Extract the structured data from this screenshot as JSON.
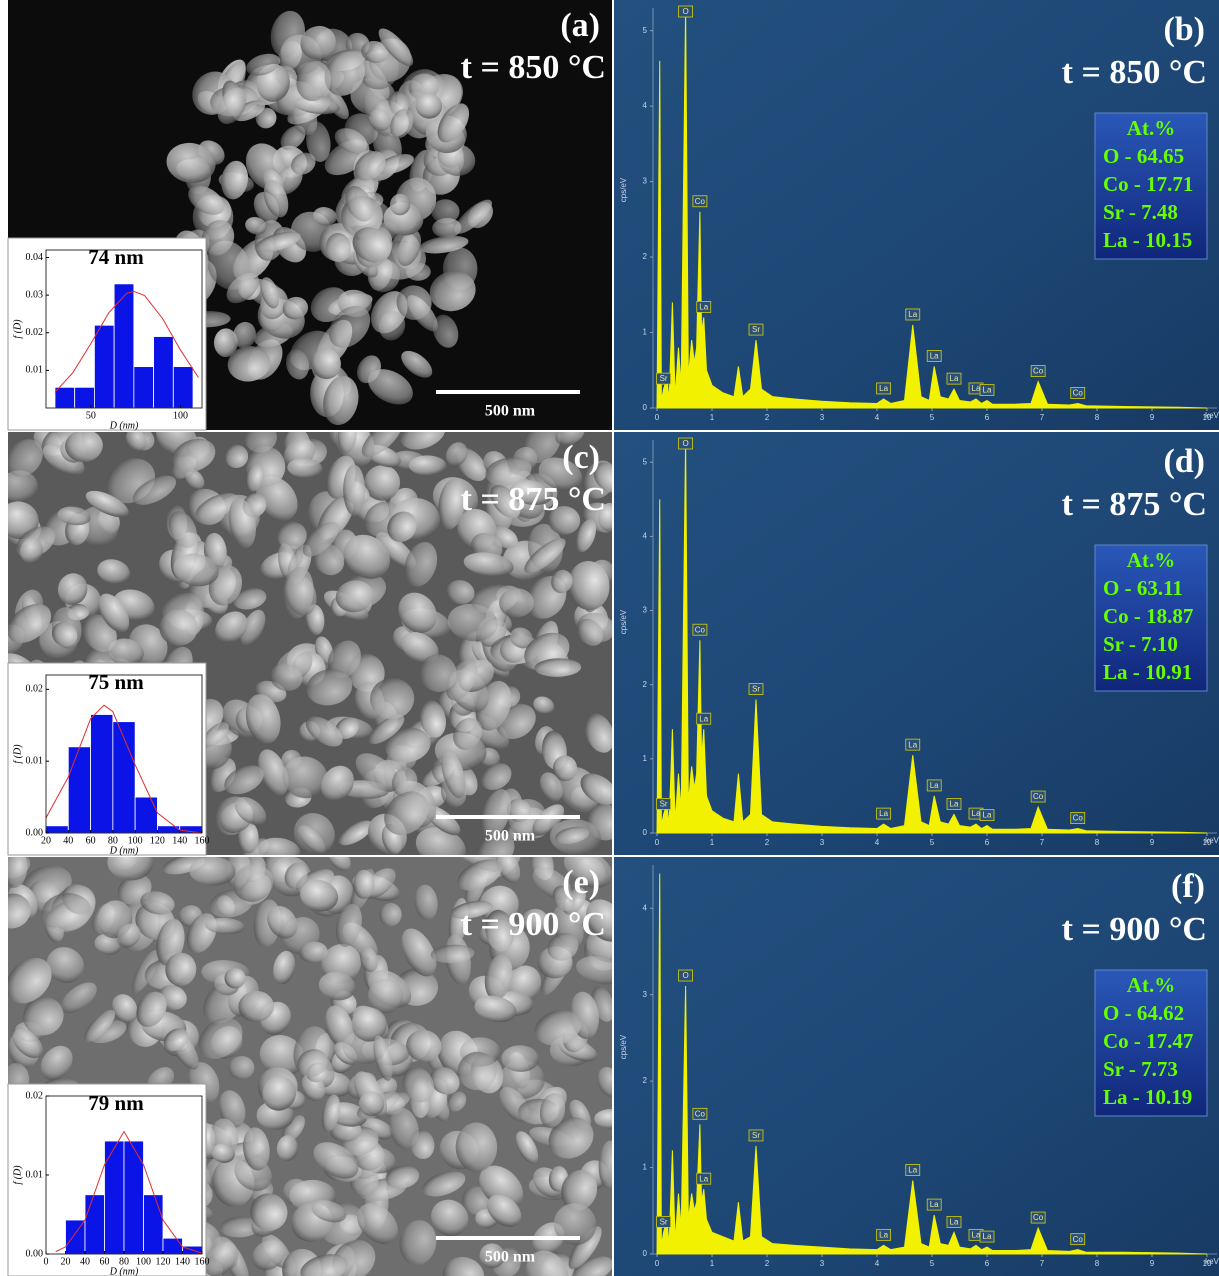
{
  "chart_data": [
    {
      "type": "histogram",
      "panel_label": "(a)",
      "temperature": "t = 850 °C",
      "scale_bar": "500 nm",
      "title": "74 nm",
      "x_label": "D (nm)",
      "y_label": "f (D)",
      "bins": [
        30,
        41,
        52,
        63,
        74,
        85,
        96,
        107
      ],
      "values": [
        0.0055,
        0.0055,
        0.022,
        0.033,
        0.011,
        0.019,
        0.011
      ],
      "color": "#0a14e6",
      "fit": {
        "x": [
          30,
          40,
          50,
          60,
          70,
          74,
          80,
          90,
          100,
          110
        ],
        "values": [
          0.0042,
          0.0094,
          0.0171,
          0.0253,
          0.0305,
          0.031,
          0.0299,
          0.0238,
          0.0154,
          0.0081
        ],
        "color": "#e03030"
      },
      "xlim": [
        25,
        112
      ],
      "xticks": [
        50,
        100
      ],
      "ylim": [
        0,
        0.042
      ],
      "yticks": [
        0.01,
        0.02,
        0.03,
        0.04
      ]
    },
    {
      "type": "spectrum",
      "panel_label": "(b)",
      "temperature": "t = 850 °C",
      "x_label": "keV",
      "y_label": "cps/eV",
      "x": [
        0,
        0.05,
        0.08,
        0.12,
        0.18,
        0.22,
        0.28,
        0.33,
        0.39,
        0.44,
        0.52,
        0.57,
        0.63,
        0.68,
        0.72,
        0.78,
        0.81,
        0.85,
        0.9,
        1.0,
        1.2,
        1.4,
        1.48,
        1.56,
        1.7,
        1.8,
        1.9,
        2.1,
        2.5,
        3.0,
        3.5,
        4.0,
        4.12,
        4.25,
        4.5,
        4.65,
        4.8,
        4.95,
        5.04,
        5.15,
        5.3,
        5.4,
        5.5,
        5.7,
        5.8,
        5.9,
        6.0,
        6.1,
        6.5,
        6.8,
        6.93,
        7.1,
        7.5,
        7.65,
        7.8,
        8.5,
        9.5,
        10
      ],
      "values": [
        0,
        4.6,
        0.1,
        0.25,
        0.4,
        0.1,
        1.4,
        0.15,
        0.8,
        0.3,
        5.3,
        0.4,
        0.9,
        0.6,
        0.8,
        2.6,
        1.0,
        1.2,
        0.5,
        0.3,
        0.2,
        0.15,
        0.55,
        0.15,
        0.25,
        0.9,
        0.25,
        0.15,
        0.12,
        0.09,
        0.07,
        0.06,
        0.12,
        0.06,
        0.1,
        1.1,
        0.15,
        0.1,
        0.55,
        0.15,
        0.12,
        0.25,
        0.1,
        0.08,
        0.12,
        0.06,
        0.1,
        0.05,
        0.05,
        0.06,
        0.35,
        0.05,
        0.04,
        0.06,
        0.03,
        0.02,
        0.01,
        0
      ],
      "color": "#f2f200",
      "xlim": [
        0,
        10
      ],
      "xticks": [
        0,
        1,
        2,
        3,
        4,
        5,
        6,
        7,
        8,
        9,
        10
      ],
      "ylim": [
        0,
        5.3
      ],
      "yticks": [
        0,
        1,
        2,
        3,
        4,
        5
      ],
      "peak_labels": [
        "Sr",
        "O",
        "Co",
        "La",
        "Sr",
        "La",
        "La",
        "La",
        "La",
        "La",
        "La",
        "Co",
        "Co"
      ],
      "peak_x": [
        0.12,
        0.52,
        0.78,
        0.85,
        1.8,
        4.12,
        4.65,
        5.04,
        5.4,
        5.8,
        6.0,
        6.93,
        7.65
      ],
      "composition_title": "At.%",
      "composition": [
        "O - 64.65",
        "Co - 17.71",
        "Sr - 7.48",
        "La - 10.15"
      ]
    },
    {
      "type": "histogram",
      "panel_label": "(c)",
      "temperature": "t = 875 °C",
      "scale_bar": "500 nm",
      "title": "75 nm",
      "x_label": "D (nm)",
      "y_label": "f (D)",
      "bins": [
        20,
        40,
        60,
        80,
        100,
        120,
        140,
        160
      ],
      "values": [
        0.001,
        0.012,
        0.0165,
        0.0155,
        0.005,
        0.001,
        0.001
      ],
      "color": "#0a14e6",
      "fit": {
        "x": [
          20,
          40,
          60,
          72,
          80,
          100,
          120,
          140,
          160
        ],
        "values": [
          0.0021,
          0.0078,
          0.0159,
          0.0178,
          0.0169,
          0.0095,
          0.0028,
          0.0004,
          0
        ],
        "color": "#e03030"
      },
      "xlim": [
        20,
        160
      ],
      "xticks": [
        20,
        40,
        60,
        80,
        100,
        120,
        140,
        160
      ],
      "ylim": [
        0,
        0.022
      ],
      "yticks": [
        {
          "value": 0,
          "label": "0.00"
        },
        0.01,
        0.02
      ]
    },
    {
      "type": "spectrum",
      "panel_label": "(d)",
      "temperature": "t = 875 °C",
      "x_label": "keV",
      "y_label": "cps/eV",
      "x": [
        0,
        0.05,
        0.08,
        0.12,
        0.18,
        0.22,
        0.28,
        0.33,
        0.39,
        0.44,
        0.52,
        0.57,
        0.63,
        0.68,
        0.72,
        0.78,
        0.81,
        0.85,
        0.9,
        1.0,
        1.2,
        1.4,
        1.48,
        1.56,
        1.7,
        1.8,
        1.9,
        2.1,
        2.5,
        3.0,
        3.5,
        4.0,
        4.12,
        4.25,
        4.5,
        4.65,
        4.8,
        4.95,
        5.04,
        5.15,
        5.3,
        5.4,
        5.5,
        5.7,
        5.8,
        5.9,
        6.0,
        6.1,
        6.5,
        6.8,
        6.93,
        7.1,
        7.5,
        7.65,
        7.8,
        8.5,
        9.5,
        10
      ],
      "values": [
        0,
        4.5,
        0.1,
        0.25,
        0.4,
        0.1,
        1.4,
        0.15,
        0.8,
        0.3,
        5.3,
        0.4,
        0.9,
        0.6,
        0.8,
        2.6,
        1.0,
        1.4,
        0.5,
        0.3,
        0.2,
        0.15,
        0.8,
        0.15,
        0.25,
        1.8,
        0.25,
        0.15,
        0.12,
        0.09,
        0.07,
        0.06,
        0.12,
        0.06,
        0.1,
        1.05,
        0.15,
        0.1,
        0.5,
        0.15,
        0.12,
        0.25,
        0.1,
        0.08,
        0.12,
        0.06,
        0.1,
        0.05,
        0.05,
        0.06,
        0.35,
        0.05,
        0.04,
        0.06,
        0.03,
        0.02,
        0.01,
        0
      ],
      "color": "#f2f200",
      "xlim": [
        0,
        10
      ],
      "xticks": [
        0,
        1,
        2,
        3,
        4,
        5,
        6,
        7,
        8,
        9,
        10
      ],
      "ylim": [
        0,
        5.3
      ],
      "yticks": [
        0,
        1,
        2,
        3,
        4,
        5
      ],
      "peak_labels": [
        "Sr",
        "O",
        "Co",
        "La",
        "Sr",
        "La",
        "La",
        "La",
        "La",
        "La",
        "La",
        "Co",
        "Co"
      ],
      "peak_x": [
        0.12,
        0.52,
        0.78,
        0.85,
        1.8,
        4.12,
        4.65,
        5.04,
        5.4,
        5.8,
        6.0,
        6.93,
        7.65
      ],
      "composition_title": "At.%",
      "composition": [
        "O - 63.11",
        "Co - 18.87",
        "Sr - 7.10",
        "La - 10.91"
      ]
    },
    {
      "type": "histogram",
      "panel_label": "(e)",
      "temperature": "t = 900 °C",
      "scale_bar": "500 nm",
      "title": "79 nm",
      "x_label": "D (nm)",
      "y_label": "f (D)",
      "bins": [
        20,
        40,
        60,
        80,
        100,
        120,
        140,
        160
      ],
      "values": [
        0.0043,
        0.0075,
        0.0143,
        0.0143,
        0.0075,
        0.002,
        0.001
      ],
      "color": "#0a14e6",
      "fit": {
        "x": [
          10,
          20,
          40,
          60,
          80,
          100,
          120,
          140,
          160
        ],
        "values": [
          0.0003,
          0.0009,
          0.0043,
          0.0113,
          0.0155,
          0.0113,
          0.0043,
          0.0009,
          0.0001
        ],
        "color": "#e03030"
      },
      "xlim": [
        0,
        160
      ],
      "xticks": [
        0,
        20,
        40,
        60,
        80,
        100,
        120,
        140,
        160
      ],
      "ylim": [
        0,
        0.02
      ],
      "yticks": [
        {
          "value": 0,
          "label": "0.00"
        },
        0.01,
        0.02
      ]
    },
    {
      "type": "spectrum",
      "panel_label": "(f)",
      "temperature": "t = 900 °C",
      "x_label": "keV",
      "y_label": "cps/eV",
      "x": [
        0,
        0.05,
        0.08,
        0.12,
        0.18,
        0.22,
        0.28,
        0.33,
        0.39,
        0.44,
        0.52,
        0.57,
        0.63,
        0.68,
        0.72,
        0.78,
        0.81,
        0.85,
        0.9,
        1.0,
        1.2,
        1.4,
        1.48,
        1.56,
        1.7,
        1.8,
        1.9,
        2.1,
        2.5,
        3.0,
        3.5,
        4.0,
        4.12,
        4.25,
        4.5,
        4.65,
        4.8,
        4.95,
        5.04,
        5.15,
        5.3,
        5.4,
        5.5,
        5.7,
        5.8,
        5.9,
        6.0,
        6.1,
        6.5,
        6.8,
        6.93,
        7.1,
        7.5,
        7.65,
        7.8,
        8.5,
        9.5,
        10
      ],
      "values": [
        0,
        4.4,
        0.1,
        0.25,
        0.4,
        0.1,
        1.2,
        0.15,
        0.7,
        0.3,
        3.1,
        0.4,
        0.7,
        0.5,
        0.6,
        1.5,
        0.6,
        0.75,
        0.4,
        0.25,
        0.2,
        0.15,
        0.6,
        0.15,
        0.2,
        1.25,
        0.2,
        0.12,
        0.1,
        0.08,
        0.06,
        0.05,
        0.1,
        0.05,
        0.08,
        0.85,
        0.12,
        0.08,
        0.45,
        0.12,
        0.1,
        0.25,
        0.08,
        0.06,
        0.1,
        0.05,
        0.08,
        0.04,
        0.04,
        0.05,
        0.3,
        0.04,
        0.03,
        0.05,
        0.02,
        0.02,
        0.01,
        0
      ],
      "color": "#f2f200",
      "xlim": [
        0,
        10
      ],
      "xticks": [
        0,
        1,
        2,
        3,
        4,
        5,
        6,
        7,
        8,
        9,
        10
      ],
      "ylim": [
        0,
        4.5
      ],
      "yticks": [
        0,
        1,
        2,
        3,
        4
      ],
      "peak_labels": [
        "Sr",
        "O",
        "Co",
        "La",
        "Sr",
        "La",
        "La",
        "La",
        "La",
        "La",
        "La",
        "Co",
        "Co"
      ],
      "peak_x": [
        0.12,
        0.52,
        0.78,
        0.85,
        1.8,
        4.12,
        4.65,
        5.04,
        5.4,
        5.8,
        6.0,
        6.93,
        7.65
      ],
      "composition_title": "At.%",
      "composition": [
        "O - 64.62",
        "Co - 17.47",
        "Sr - 7.73",
        "La - 10.19"
      ]
    }
  ]
}
